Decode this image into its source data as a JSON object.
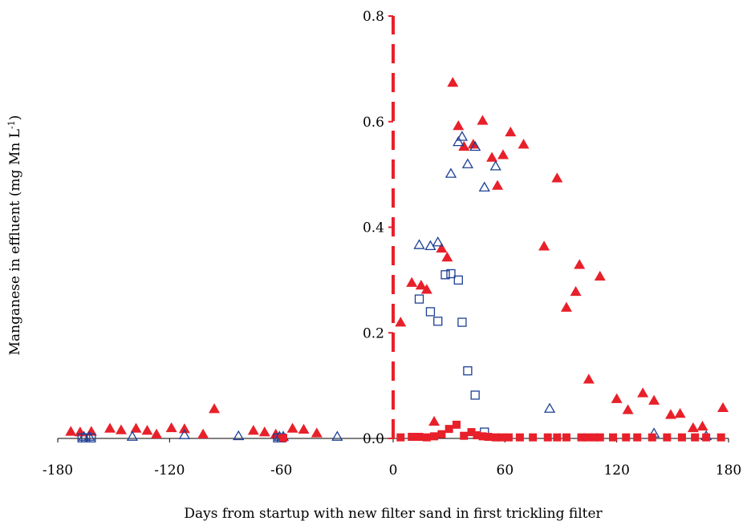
{
  "chart_data": {
    "type": "scatter",
    "title": "",
    "xlabel": "Days from startup with new filter sand in first trickling filter",
    "ylabel": "Manganese in effluent (mg Mn L",
    "ylabel_sup": "-1",
    "ylabel_end": ")",
    "xlim": [
      -180,
      180
    ],
    "ylim": [
      0,
      0.8
    ],
    "xticks": [
      -180,
      -120,
      -60,
      0,
      60,
      120,
      180
    ],
    "yticks": [
      0,
      0.2,
      0.4,
      0.6,
      0.8
    ],
    "xtick_labels": [
      "-180",
      "-120",
      "-60",
      "0",
      "60",
      "120",
      "180"
    ],
    "ytick_labels": [
      "0.0",
      "0.2",
      "0.4",
      "0.6",
      "0.8"
    ],
    "grid": false,
    "legend": "none",
    "startup_line": {
      "x": 0,
      "color": "#e8202a",
      "style": "dashed"
    },
    "series": [
      {
        "marker": "filled-triangle",
        "color": "#e8202a",
        "points": [
          [
            -173,
            0.013
          ],
          [
            -168,
            0.012
          ],
          [
            -162,
            0.013
          ],
          [
            -152,
            0.019
          ],
          [
            -146,
            0.016
          ],
          [
            -138,
            0.019
          ],
          [
            -132,
            0.015
          ],
          [
            -127,
            0.008
          ],
          [
            -119,
            0.02
          ],
          [
            -112,
            0.018
          ],
          [
            -102,
            0.008
          ],
          [
            -96,
            0.056
          ],
          [
            -75,
            0.015
          ],
          [
            -69,
            0.012
          ],
          [
            -63,
            0.008
          ],
          [
            -54,
            0.019
          ],
          [
            -48,
            0.017
          ],
          [
            -41,
            0.01
          ],
          [
            4,
            0.22
          ],
          [
            10,
            0.295
          ],
          [
            15,
            0.29
          ],
          [
            18,
            0.282
          ],
          [
            22,
            0.032
          ],
          [
            26,
            0.36
          ],
          [
            29,
            0.343
          ],
          [
            32,
            0.674
          ],
          [
            35,
            0.592
          ],
          [
            38,
            0.553
          ],
          [
            43,
            0.557
          ],
          [
            48,
            0.602
          ],
          [
            53,
            0.532
          ],
          [
            56,
            0.479
          ],
          [
            59,
            0.537
          ],
          [
            63,
            0.58
          ],
          [
            70,
            0.557
          ],
          [
            81,
            0.364
          ],
          [
            88,
            0.493
          ],
          [
            93,
            0.248
          ],
          [
            98,
            0.278
          ],
          [
            100,
            0.329
          ],
          [
            105,
            0.112
          ],
          [
            111,
            0.307
          ],
          [
            120,
            0.075
          ],
          [
            126,
            0.054
          ],
          [
            134,
            0.086
          ],
          [
            140,
            0.072
          ],
          [
            149,
            0.045
          ],
          [
            154,
            0.047
          ],
          [
            161,
            0.02
          ],
          [
            166,
            0.023
          ],
          [
            177,
            0.058
          ]
        ]
      },
      {
        "marker": "open-triangle",
        "color": "#1c3f94",
        "points": [
          [
            -166,
            0.002
          ],
          [
            -163,
            0.002
          ],
          [
            -140,
            0.002
          ],
          [
            -112,
            0.005
          ],
          [
            -83,
            0.003
          ],
          [
            -61,
            0.002
          ],
          [
            -59,
            0.002
          ],
          [
            -30,
            0.002
          ],
          [
            14,
            0.365
          ],
          [
            20,
            0.363
          ],
          [
            24,
            0.37
          ],
          [
            31,
            0.5
          ],
          [
            35,
            0.56
          ],
          [
            37,
            0.57
          ],
          [
            40,
            0.518
          ],
          [
            44,
            0.551
          ],
          [
            49,
            0.474
          ],
          [
            55,
            0.514
          ],
          [
            84,
            0.055
          ],
          [
            140,
            0.008
          ],
          [
            168,
            0.003
          ]
        ]
      },
      {
        "marker": "open-square",
        "color": "#1c3f94",
        "points": [
          [
            -167,
            0.001
          ],
          [
            -165,
            0.001
          ],
          [
            -162,
            0.001
          ],
          [
            -62,
            0.001
          ],
          [
            -60,
            0.001
          ],
          [
            14,
            0.264
          ],
          [
            20,
            0.24
          ],
          [
            24,
            0.222
          ],
          [
            28,
            0.31
          ],
          [
            31,
            0.312
          ],
          [
            35,
            0.3
          ],
          [
            37,
            0.22
          ],
          [
            40,
            0.128
          ],
          [
            44,
            0.082
          ],
          [
            49,
            0.012
          ]
        ]
      },
      {
        "marker": "filled-square",
        "color": "#e8202a",
        "points": [
          [
            -59,
            0.001
          ],
          [
            4,
            0.002
          ],
          [
            10,
            0.003
          ],
          [
            14,
            0.003
          ],
          [
            18,
            0.002
          ],
          [
            22,
            0.004
          ],
          [
            26,
            0.008
          ],
          [
            30,
            0.018
          ],
          [
            34,
            0.026
          ],
          [
            38,
            0.005
          ],
          [
            42,
            0.012
          ],
          [
            45,
            0.006
          ],
          [
            48,
            0.004
          ],
          [
            51,
            0.003
          ],
          [
            55,
            0.002
          ],
          [
            58,
            0.002
          ],
          [
            62,
            0.002
          ],
          [
            68,
            0.002
          ],
          [
            75,
            0.002
          ],
          [
            83,
            0.002
          ],
          [
            88,
            0.002
          ],
          [
            93,
            0.002
          ],
          [
            101,
            0.002
          ],
          [
            104,
            0.002
          ],
          [
            108,
            0.002
          ],
          [
            111,
            0.002
          ],
          [
            118,
            0.002
          ],
          [
            125,
            0.002
          ],
          [
            131,
            0.002
          ],
          [
            139,
            0.002
          ],
          [
            147,
            0.002
          ],
          [
            155,
            0.002
          ],
          [
            162,
            0.002
          ],
          [
            168,
            0.002
          ],
          [
            176,
            0.002
          ]
        ]
      }
    ]
  }
}
